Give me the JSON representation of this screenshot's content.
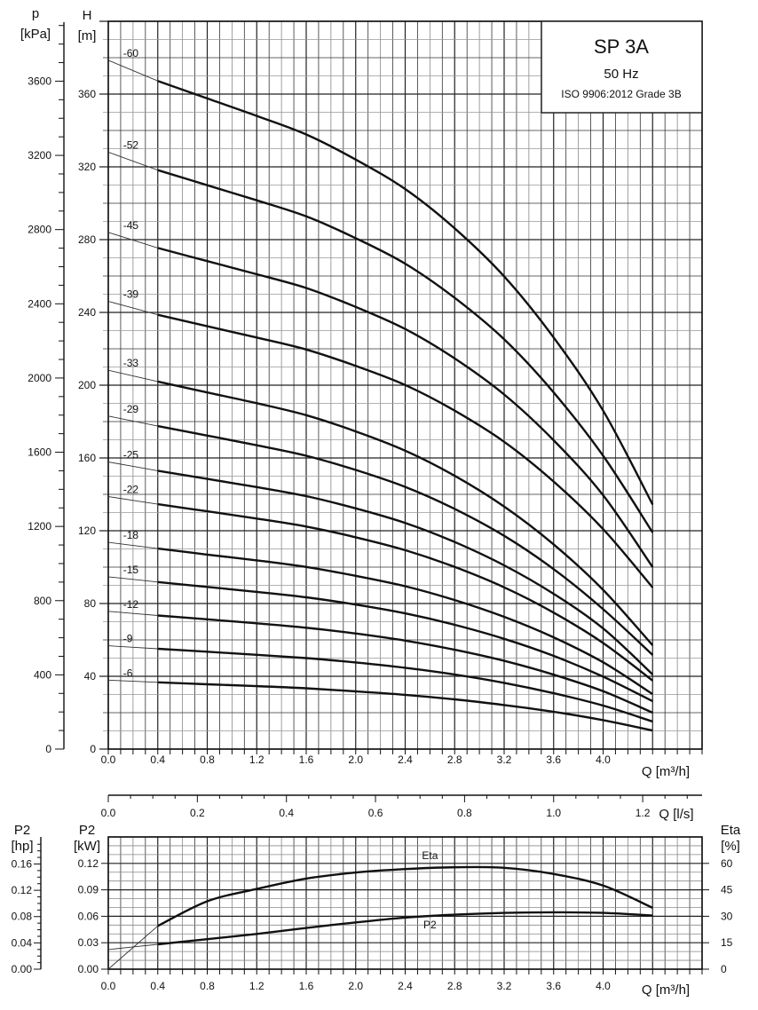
{
  "chart_data": [
    {
      "type": "line",
      "title": "SP 3A",
      "subtitle": "50 Hz",
      "note": "ISO 9906:2012 Grade 3B",
      "xlabel": "Q [m³/h]",
      "xlim": [
        0,
        4.8
      ],
      "x_ticks": [
        "0.0",
        "0.4",
        "0.8",
        "1.2",
        "1.6",
        "2.0",
        "2.4",
        "2.8",
        "3.2",
        "3.6",
        "4.0"
      ],
      "ylabel_top": "H",
      "ylabel_unit": "[m]",
      "ylim": [
        0,
        400
      ],
      "y_ticks": [
        "0",
        "40",
        "80",
        "120",
        "160",
        "200",
        "240",
        "280",
        "320",
        "360"
      ],
      "p_axis": {
        "label_top": "p",
        "label_unit": "[kPa]",
        "ticks": [
          "0",
          "400",
          "800",
          "1200",
          "1600",
          "2000",
          "2400",
          "2800",
          "3200",
          "3600"
        ]
      },
      "ls_axis": {
        "label": "Q [l/s]",
        "ticks": [
          "0.0",
          "0.2",
          "0.4",
          "0.6",
          "0.8",
          "1.0",
          "1.2"
        ]
      },
      "grid": true,
      "x": [
        0,
        0.4,
        0.8,
        1.2,
        1.6,
        2.0,
        2.4,
        2.8,
        3.2,
        3.6,
        4.0,
        4.4
      ],
      "series": [
        {
          "name": "-60",
          "values": [
            378.6,
            367.2,
            357.6,
            348,
            337.8,
            324,
            307.8,
            286.2,
            259.8,
            226.2,
            186,
            134.4
          ]
        },
        {
          "name": "-52",
          "values": [
            328.1,
            318.2,
            309.9,
            301.6,
            292.8,
            280.8,
            266.8,
            248,
            225.2,
            196,
            161.2,
            119.0
          ]
        },
        {
          "name": "-45",
          "values": [
            284,
            275.4,
            268.2,
            261,
            253.4,
            243,
            230.9,
            214.7,
            194.9,
            169.7,
            139.5,
            100.0
          ]
        },
        {
          "name": "-39",
          "values": [
            246.1,
            238.7,
            232.4,
            226.2,
            219.6,
            210.6,
            200.1,
            186,
            168.9,
            147,
            120.9,
            88.8
          ]
        },
        {
          "name": "-33",
          "values": [
            208.2,
            202,
            196,
            190.1,
            183.5,
            174.6,
            164,
            150.2,
            133.3,
            112.5,
            87.5,
            57
          ]
        },
        {
          "name": "-29",
          "values": [
            183,
            177.5,
            172.3,
            167,
            161.2,
            153.4,
            144.1,
            132,
            117.2,
            98.9,
            76.9,
            51.7
          ]
        },
        {
          "name": "-25",
          "values": [
            157.8,
            153,
            148.5,
            144,
            139,
            132.3,
            124.3,
            113.8,
            101,
            85.3,
            66.3,
            41
          ]
        },
        {
          "name": "-22",
          "values": [
            138.8,
            134.6,
            130.7,
            126.7,
            122.3,
            116.4,
            109.3,
            100.1,
            88.9,
            75,
            58.3,
            37.6
          ]
        },
        {
          "name": "-18",
          "values": [
            113.6,
            110.2,
            106.9,
            103.7,
            100.1,
            95.2,
            89.5,
            81.9,
            72.7,
            61.4,
            47.7,
            30.2
          ]
        },
        {
          "name": "-15",
          "values": [
            94.7,
            91.8,
            89.1,
            86.4,
            83.4,
            79.4,
            74.6,
            68.3,
            60.6,
            51.2,
            39.8,
            26.3
          ]
        },
        {
          "name": "-12",
          "values": [
            75.7,
            73.4,
            71.3,
            69.1,
            66.7,
            63.5,
            59.6,
            54.6,
            48.5,
            40.9,
            31.8,
            20
          ]
        },
        {
          "name": "-9",
          "values": [
            56.8,
            55.1,
            53.5,
            51.8,
            50,
            47.6,
            44.7,
            41,
            36.4,
            30.7,
            23.9,
            15.1
          ]
        },
        {
          "name": "-6",
          "values": [
            37.9,
            36.7,
            35.6,
            34.6,
            33.4,
            31.7,
            29.8,
            27.3,
            24.2,
            20.5,
            15.9,
            10.2
          ]
        }
      ]
    },
    {
      "type": "line",
      "xlabel": "Q [m³/h]",
      "xlim": [
        0,
        4.8
      ],
      "x_ticks": [
        "0.0",
        "0.4",
        "0.8",
        "1.2",
        "1.6",
        "2.0",
        "2.4",
        "2.8",
        "3.2",
        "3.6",
        "4.0"
      ],
      "kw_axis": {
        "label_top": "P2",
        "label_unit": "[kW]",
        "ticks": [
          "0.00",
          "0.03",
          "0.06",
          "0.09",
          "0.12"
        ],
        "lim": [
          0,
          0.15
        ]
      },
      "hp_axis": {
        "label_top": "P2",
        "label_unit": "[hp]",
        "ticks": [
          "0.00",
          "0.04",
          "0.08",
          "0.12",
          "0.16"
        ]
      },
      "eta_axis": {
        "label_top": "Eta",
        "label_unit": "[%]",
        "ticks": [
          "0",
          "15",
          "30",
          "45",
          "60"
        ],
        "lim": [
          0,
          75
        ]
      },
      "grid": true,
      "x": [
        0,
        0.4,
        0.8,
        1.2,
        1.6,
        2.0,
        2.4,
        2.8,
        3.2,
        3.6,
        4.0,
        4.4
      ],
      "series": [
        {
          "name": "Eta",
          "unit": "%",
          "values": [
            0,
            24.5,
            38.5,
            45.5,
            51.4,
            54.8,
            56.8,
            57.8,
            57.5,
            54,
            47.4,
            34.8
          ]
        },
        {
          "name": "P2",
          "unit": "kW",
          "values": [
            0.0222,
            0.0282,
            0.034,
            0.04,
            0.0467,
            0.0531,
            0.0585,
            0.0618,
            0.0638,
            0.0645,
            0.0638,
            0.0608
          ]
        }
      ]
    }
  ]
}
